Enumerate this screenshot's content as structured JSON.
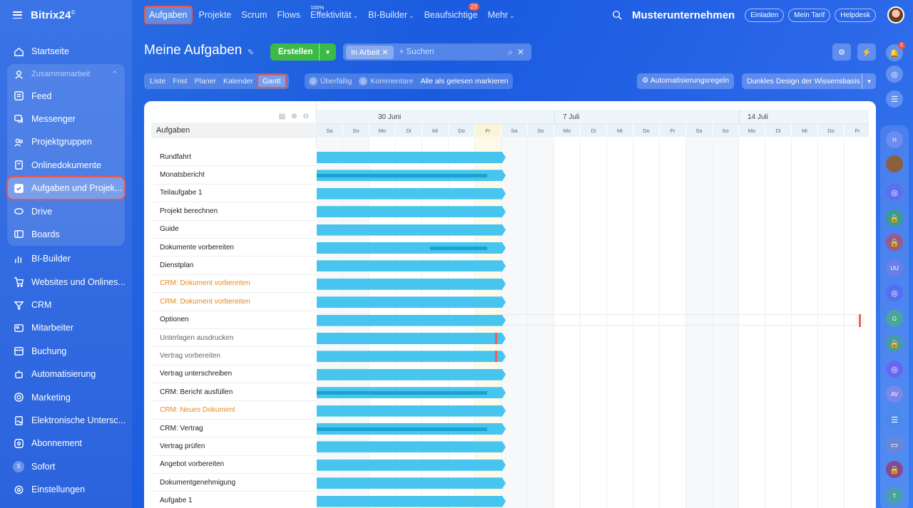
{
  "app": {
    "logo": "Bitrix24",
    "logo_sup": "©"
  },
  "sidebar": {
    "items": [
      {
        "label": "Startseite",
        "icon": "home-icon"
      },
      {
        "label": "Zusammenarbeit",
        "icon": "collab-icon",
        "group_head": true
      },
      {
        "label": "Feed",
        "icon": "feed-icon"
      },
      {
        "label": "Messenger",
        "icon": "messenger-icon"
      },
      {
        "label": "Projektgruppen",
        "icon": "groups-icon"
      },
      {
        "label": "Onlinedokumente",
        "icon": "documents-icon"
      },
      {
        "label": "Aufgaben und Projek...",
        "icon": "tasks-icon",
        "active": true
      },
      {
        "label": "Drive",
        "icon": "drive-icon"
      },
      {
        "label": "Boards",
        "icon": "boards-icon"
      },
      {
        "label": "BI-Builder",
        "icon": "bi-icon"
      },
      {
        "label": "Websites und Onlines...",
        "icon": "cart-icon"
      },
      {
        "label": "CRM",
        "icon": "crm-icon"
      },
      {
        "label": "Mitarbeiter",
        "icon": "employees-icon"
      },
      {
        "label": "Buchung",
        "icon": "booking-icon"
      },
      {
        "label": "Automatisierung",
        "icon": "automation-icon"
      },
      {
        "label": "Marketing",
        "icon": "marketing-icon"
      },
      {
        "label": "Elektronische Untersc...",
        "icon": "signature-icon"
      },
      {
        "label": "Abonnement",
        "icon": "subscription-icon"
      },
      {
        "label": "Sofort",
        "icon": "sofort-icon",
        "badge": "S"
      },
      {
        "label": "Einstellungen",
        "icon": "settings-icon"
      }
    ]
  },
  "topnav": {
    "items": [
      {
        "label": "Aufgaben",
        "active": true
      },
      {
        "label": "Projekte"
      },
      {
        "label": "Scrum"
      },
      {
        "label": "Flows"
      },
      {
        "label": "Effektivität",
        "sup": "100%",
        "dropdown": true
      },
      {
        "label": "BI-Builder",
        "dropdown": true
      },
      {
        "label": "Beaufsichtige",
        "count": "23"
      },
      {
        "label": "Mehr",
        "dropdown": true
      }
    ],
    "company": "Musterunternehmen",
    "invite": "Einladen",
    "tariff": "Mein Tarif",
    "helpdesk": "Helpdesk"
  },
  "page": {
    "title": "Meine Aufgaben",
    "create_label": "Erstellen",
    "filter_tag": "In Arbeit",
    "search_placeholder": "+ Suchen",
    "views": [
      "Liste",
      "Frist",
      "Planer",
      "Kalender",
      "Gantt"
    ],
    "active_view": "Gantt",
    "counters": {
      "overdue_count": "0",
      "overdue": "Überfällig",
      "comments_count": "0",
      "comments": "Kommentare",
      "mark_read": "Alle als gelesen markieren"
    },
    "automation_rules": "Automatisierungsregeln",
    "design": "Dunkles Design der Wissensbasis"
  },
  "gantt": {
    "list_header": "Aufgaben",
    "weeks": [
      "30 Juni",
      "7 Juli",
      "14 Juli"
    ],
    "days": [
      "Sa",
      "So",
      "Mo",
      "Di",
      "Mi",
      "Do",
      "Fr",
      "Sa",
      "So",
      "Mo",
      "Di",
      "Mi",
      "Do",
      "Fr",
      "Sa",
      "So",
      "Mo",
      "Di",
      "Mi",
      "Do",
      "Fr"
    ],
    "today_index": 6,
    "tasks": [
      {
        "title": "Rundfahrt"
      },
      {
        "title": "Monatsbericht",
        "progress": 0.9
      },
      {
        "title": "Teilaufgabe 1"
      },
      {
        "title": "Projekt berechnen"
      },
      {
        "title": "Guide"
      },
      {
        "title": "Dokumente vorbereiten",
        "progress_from": 0.6,
        "progress": 0.9
      },
      {
        "title": "Dienstplan"
      },
      {
        "title": "CRM: Dokument vorbereiten",
        "style": "orange"
      },
      {
        "title": "CRM: Dokument vorbereiten",
        "style": "orange"
      },
      {
        "title": "Optionen",
        "deadline_far": true
      },
      {
        "title": "Unterlagen ausdrucken",
        "style": "gray",
        "deadline_mark": true
      },
      {
        "title": "Vertrag vorbereiten",
        "style": "gray",
        "deadline_mark": true
      },
      {
        "title": "Vertrag unterschreiben"
      },
      {
        "title": "CRM: Bericht ausfüllen",
        "progress": 0.9
      },
      {
        "title": "CRM: Neues Dokument",
        "style": "orange"
      },
      {
        "title": "CRM: Vertrag",
        "progress": 0.9
      },
      {
        "title": "Vertrag prüfen"
      },
      {
        "title": "Angebot vorbereiten"
      },
      {
        "title": "Dokumentgenehmigung"
      },
      {
        "title": "Aufgabe 1"
      }
    ]
  },
  "right_panel": {
    "items": [
      {
        "icon": "bell-icon",
        "badge": "1"
      },
      {
        "icon": "copilot-icon"
      },
      {
        "icon": "chat-icon"
      },
      {
        "label": "H"
      },
      {
        "icon": "avatar"
      },
      {
        "icon": "copilot-icon"
      },
      {
        "icon": "lock-icon"
      },
      {
        "icon": "lock-icon"
      },
      {
        "label": "UU"
      },
      {
        "icon": "copilot-icon"
      },
      {
        "label": "G"
      },
      {
        "icon": "lock-icon"
      },
      {
        "icon": "copilot-icon"
      },
      {
        "label": "AV"
      },
      {
        "icon": "chat-icon"
      },
      {
        "icon": "card-icon"
      },
      {
        "icon": "lock-icon"
      },
      {
        "label": "T"
      }
    ]
  },
  "colors": {
    "accent_red": "#e8574c",
    "bar": "#47c5ef",
    "progress": "#1aa3d1",
    "create": "#3cba45",
    "orange_text": "#e08a1e"
  }
}
